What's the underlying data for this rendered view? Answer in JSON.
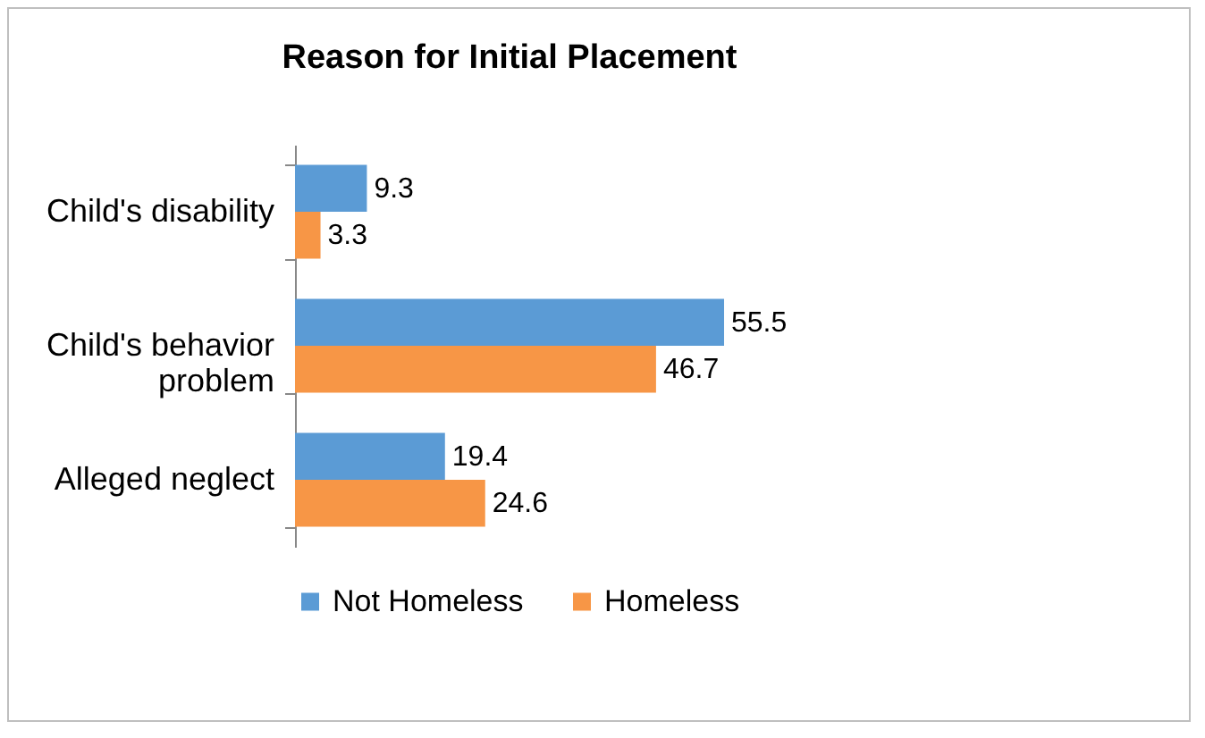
{
  "chart_data": {
    "type": "bar",
    "orientation": "horizontal",
    "title": "Reason for Initial Placement",
    "categories": [
      "Child's disability",
      "Child's behavior problem",
      "Alleged neglect"
    ],
    "series": [
      {
        "name": "Not Homeless",
        "color": "#5b9bd5",
        "values": [
          9.3,
          55.5,
          19.4
        ]
      },
      {
        "name": "Homeless",
        "color": "#f79646",
        "values": [
          3.3,
          46.7,
          24.6
        ]
      }
    ],
    "data_labels": true,
    "legend": "bottom",
    "grid": false
  }
}
